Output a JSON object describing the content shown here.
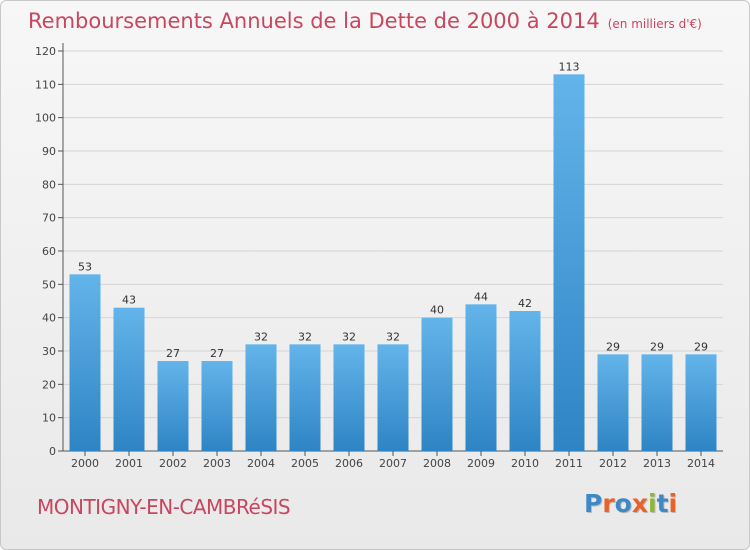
{
  "header": {
    "title": "Remboursements Annuels de la Dette de 2000 à 2014",
    "unit": "(en milliers d'€)"
  },
  "footer": {
    "place": "MONTIGNY-EN-CAMBRéSIS",
    "logo": "Proxiti"
  },
  "colors": {
    "title": "#c8465e",
    "bar_top": "#63b4ea",
    "bar_bottom": "#2e84c4",
    "logo_letters": [
      "#3f88c7",
      "#e8622b",
      "#3f88c7",
      "#e8622b",
      "#8db833",
      "#3f88c7",
      "#e8622b"
    ]
  },
  "chart_data": {
    "type": "bar",
    "title": "Remboursements Annuels de la Dette de 2000 à 2014",
    "xlabel": "",
    "ylabel": "(en milliers d'€)",
    "categories": [
      "2000",
      "2001",
      "2002",
      "2003",
      "2004",
      "2005",
      "2006",
      "2007",
      "2008",
      "2009",
      "2010",
      "2011",
      "2012",
      "2013",
      "2014"
    ],
    "values": [
      53,
      43,
      27,
      27,
      32,
      32,
      32,
      32,
      40,
      44,
      42,
      113,
      29,
      29,
      29
    ],
    "ylim": [
      0,
      120
    ],
    "yticks": [
      0,
      10,
      20,
      30,
      40,
      50,
      60,
      70,
      80,
      90,
      100,
      110,
      120
    ],
    "grid": true
  }
}
